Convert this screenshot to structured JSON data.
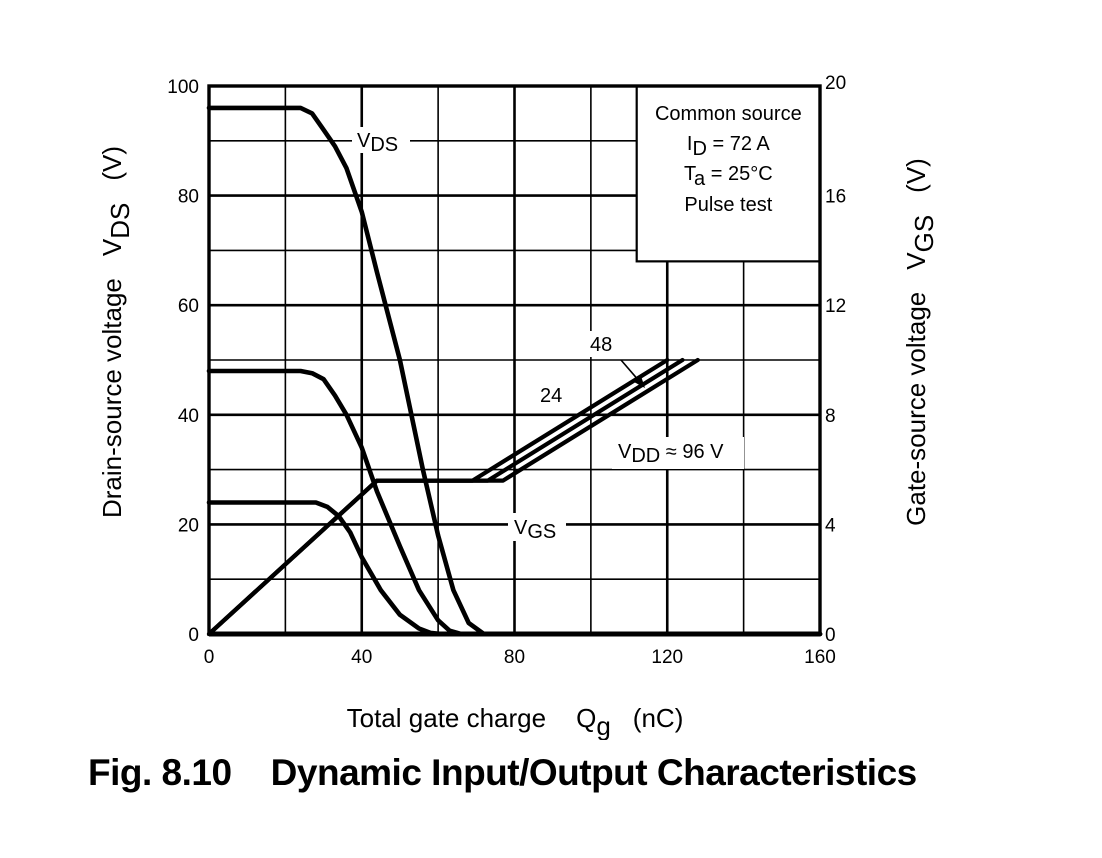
{
  "figure": {
    "caption": "Fig. 8.10    Dynamic Input/Output Characteristics"
  },
  "chart_data": {
    "type": "line",
    "title": "Dynamic Input/Output Characteristics",
    "xlabel": "Total gate charge",
    "xlabel_symbol": "Q",
    "xlabel_symbol_sub": "g",
    "xlabel_unit": "(nC)",
    "ylabel_left": "Drain-source voltage",
    "ylabel_left_symbol": "V",
    "ylabel_left_symbol_sub": "DS",
    "ylabel_left_unit": "(V)",
    "ylabel_right": "Gate-source voltage",
    "ylabel_right_symbol": "V",
    "ylabel_right_symbol_sub": "GS",
    "ylabel_right_unit": "(V)",
    "xlim": [
      0,
      160
    ],
    "ylim_left": [
      0,
      100
    ],
    "ylim_right": [
      0,
      20
    ],
    "xticks": [
      0,
      40,
      80,
      120,
      160
    ],
    "yticks_left": [
      0,
      20,
      40,
      60,
      80,
      100
    ],
    "yticks_right": [
      0,
      4,
      8,
      12,
      16,
      20
    ],
    "grid": true,
    "conditions": {
      "line1": "Common source",
      "line2_sym": "I",
      "line2_sub": "D",
      "line2_rest": " = 72 A",
      "line3_sym": "T",
      "line3_sub": "a",
      "line3_rest": " = 25°C",
      "line4": "Pulse test"
    },
    "annotations": {
      "vds": {
        "sym": "V",
        "sub": "DS"
      },
      "vgs": {
        "sym": "V",
        "sub": "GS"
      },
      "vdd": {
        "sym": "V",
        "sub": "DD",
        "rest": " ≈ 96 V"
      },
      "label_24": "24",
      "label_48": "48"
    },
    "series": [
      {
        "name": "VDS (VDD = 96 V)",
        "axis": "left",
        "x": [
          0,
          24,
          27,
          30,
          33,
          36,
          40,
          44,
          50,
          56,
          60,
          64,
          68,
          72,
          160
        ],
        "y": [
          96,
          96,
          95,
          92,
          89,
          85,
          77,
          66,
          50,
          30,
          18,
          8,
          2,
          0,
          0
        ]
      },
      {
        "name": "VDS (VDD = 48 V)",
        "axis": "left",
        "x": [
          0,
          24,
          27,
          30,
          33,
          36,
          40,
          44,
          50,
          55,
          60,
          63,
          66,
          160
        ],
        "y": [
          48,
          48,
          47.6,
          46.5,
          43.5,
          40,
          34,
          26,
          16,
          8,
          2.5,
          0.6,
          0,
          0
        ]
      },
      {
        "name": "VDS (VDD = 24 V)",
        "axis": "left",
        "x": [
          0,
          28,
          31,
          34,
          37,
          40,
          45,
          50,
          55,
          58,
          61,
          160
        ],
        "y": [
          24,
          24,
          23.2,
          21.5,
          18.5,
          14,
          8,
          3.5,
          1,
          0.2,
          0,
          0
        ]
      },
      {
        "name": "VGS (VDD = 24 V)",
        "axis": "right",
        "x": [
          0,
          44,
          69,
          120
        ],
        "y": [
          0,
          5.6,
          5.6,
          10
        ]
      },
      {
        "name": "VGS (VDD = 48 V)",
        "axis": "right",
        "x": [
          0,
          44,
          73,
          124
        ],
        "y": [
          0,
          5.6,
          5.6,
          10
        ]
      },
      {
        "name": "VGS (VDD = 96 V)",
        "axis": "right",
        "x": [
          0,
          44,
          77,
          128
        ],
        "y": [
          0,
          5.6,
          5.6,
          10
        ]
      }
    ]
  }
}
